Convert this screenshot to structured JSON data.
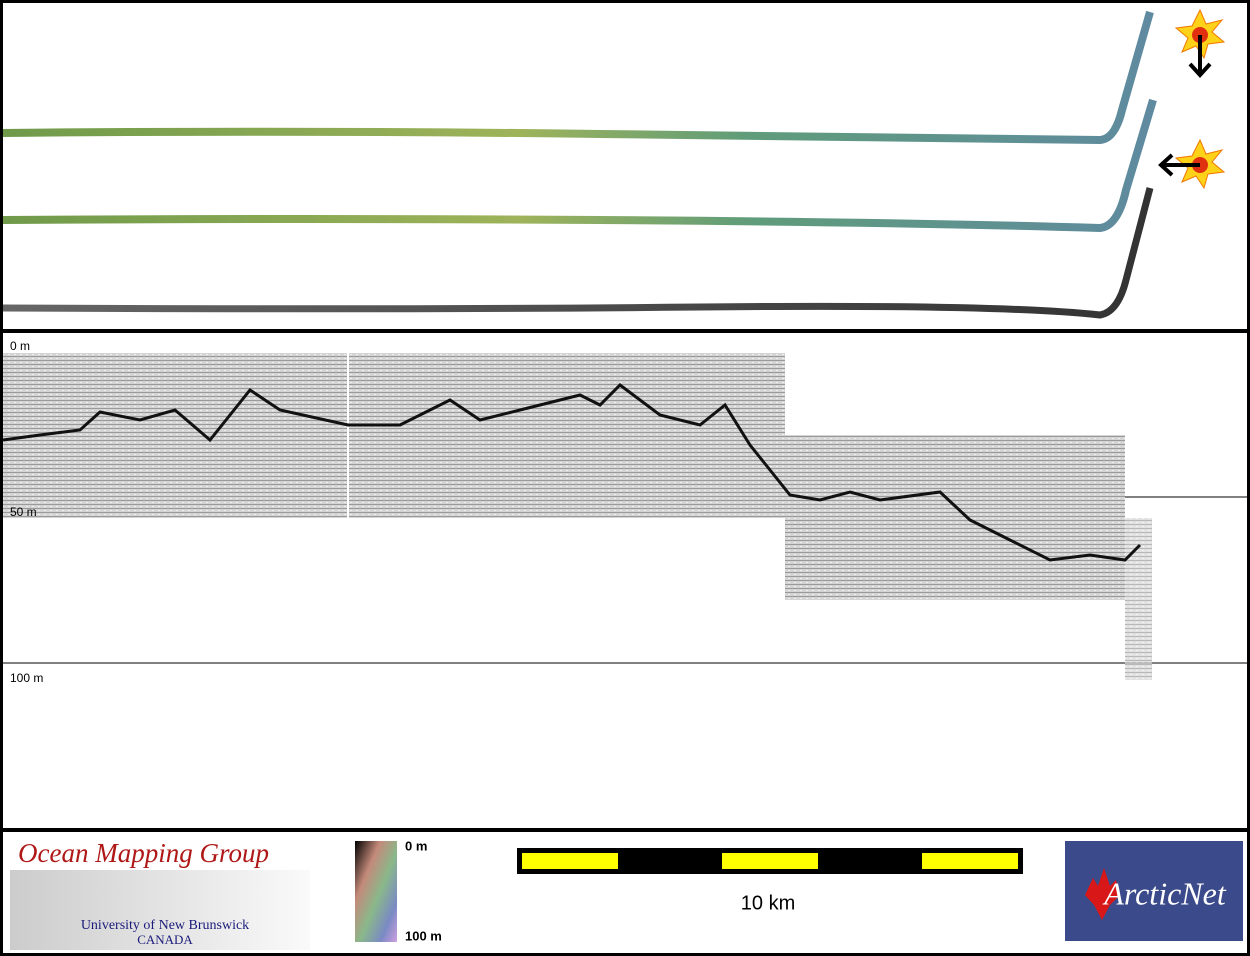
{
  "profile": {
    "depth_labels": [
      "0 m",
      "50 m",
      "100 m"
    ]
  },
  "footer": {
    "logo": {
      "title": "Ocean Mapping Group",
      "university": "University of New Brunswick",
      "country": "CANADA"
    },
    "colorbar": {
      "top_label": "0 m",
      "bottom_label": "100 m"
    },
    "scale_bar": {
      "label": "10 km"
    },
    "partner_logo": {
      "name": "ArcticNet"
    }
  }
}
